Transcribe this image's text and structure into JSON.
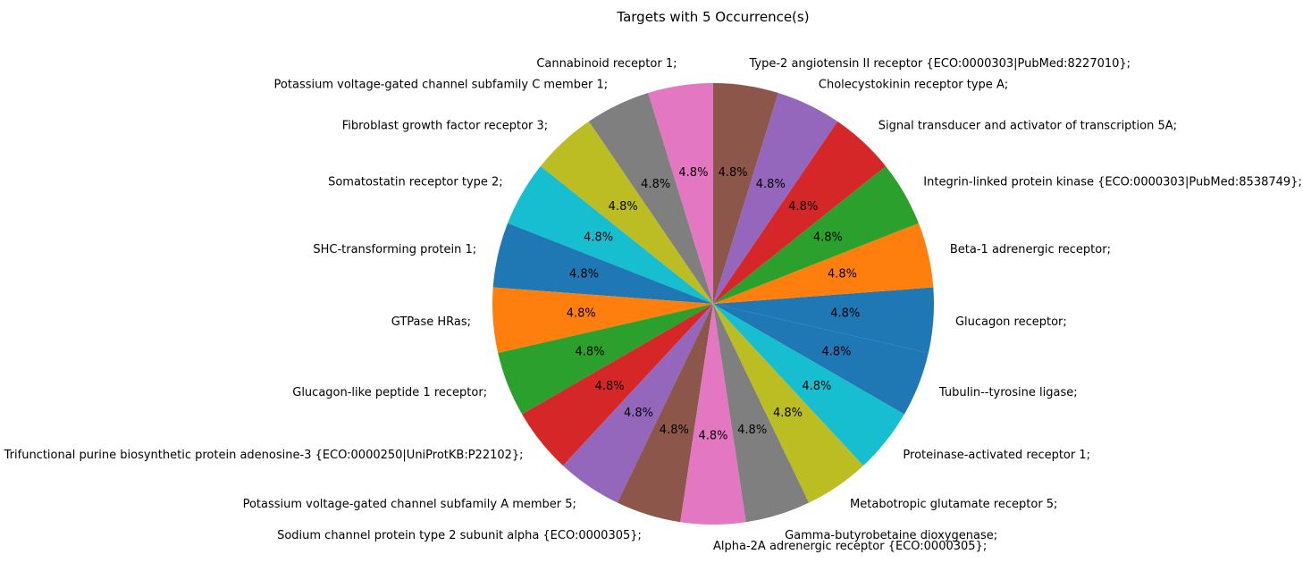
{
  "chart_data": {
    "type": "pie",
    "title": "Targets with 5 Occurrence(s)",
    "slices": [
      {
        "label": "Glucagon receptor;",
        "value": 4.8,
        "pct_label": "4.8%",
        "color": "#1f77b4"
      },
      {
        "label": "Beta-1 adrenergic receptor;",
        "value": 4.8,
        "pct_label": "4.8%",
        "color": "#ff7f0e"
      },
      {
        "label": "Integrin-linked protein kinase {ECO:0000303|PubMed:8538749};",
        "value": 4.8,
        "pct_label": "4.8%",
        "color": "#2ca02c"
      },
      {
        "label": "Signal transducer and activator of transcription 5A;",
        "value": 4.8,
        "pct_label": "4.8%",
        "color": "#d62728"
      },
      {
        "label": "Cholecystokinin receptor type A;",
        "value": 4.8,
        "pct_label": "4.8%",
        "color": "#9467bd"
      },
      {
        "label": "Type-2 angiotensin II receptor {ECO:0000303|PubMed:8227010};",
        "value": 4.8,
        "pct_label": "4.8%",
        "color": "#8c564b"
      },
      {
        "label": "Cannabinoid receptor 1;",
        "value": 4.8,
        "pct_label": "4.8%",
        "color": "#e377c2"
      },
      {
        "label": "Potassium voltage-gated channel subfamily C member 1;",
        "value": 4.8,
        "pct_label": "4.8%",
        "color": "#7f7f7f"
      },
      {
        "label": "Fibroblast growth factor receptor 3;",
        "value": 4.8,
        "pct_label": "4.8%",
        "color": "#bcbd22"
      },
      {
        "label": "Somatostatin receptor type 2;",
        "value": 4.8,
        "pct_label": "4.8%",
        "color": "#17becf"
      },
      {
        "label": "SHC-transforming protein 1;",
        "value": 4.8,
        "pct_label": "4.8%",
        "color": "#1f77b4"
      },
      {
        "label": "GTPase HRas;",
        "value": 4.8,
        "pct_label": "4.8%",
        "color": "#ff7f0e"
      },
      {
        "label": "Glucagon-like peptide 1 receptor;",
        "value": 4.8,
        "pct_label": "4.8%",
        "color": "#2ca02c"
      },
      {
        "label": "Trifunctional purine biosynthetic protein adenosine-3 {ECO:0000250|UniProtKB:P22102};",
        "value": 4.8,
        "pct_label": "4.8%",
        "color": "#d62728"
      },
      {
        "label": "Potassium voltage-gated channel subfamily A member 5;",
        "value": 4.8,
        "pct_label": "4.8%",
        "color": "#9467bd"
      },
      {
        "label": "Sodium channel protein type 2 subunit alpha {ECO:0000305};",
        "value": 4.8,
        "pct_label": "4.8%",
        "color": "#8c564b"
      },
      {
        "label": "Alpha-2A adrenergic receptor {ECO:0000305};",
        "value": 4.8,
        "pct_label": "4.8%",
        "color": "#e377c2"
      },
      {
        "label": "Gamma-butyrobetaine dioxygenase;",
        "value": 4.8,
        "pct_label": "4.8%",
        "color": "#7f7f7f"
      },
      {
        "label": "Metabotropic glutamate receptor 5;",
        "value": 4.8,
        "pct_label": "4.8%",
        "color": "#bcbd22"
      },
      {
        "label": "Proteinase-activated receptor 1;",
        "value": 4.8,
        "pct_label": "4.8%",
        "color": "#17becf"
      },
      {
        "label": "Tubulin--tyrosine ligase;",
        "value": 4.8,
        "pct_label": "4.8%",
        "color": "#1f77b4"
      }
    ]
  }
}
